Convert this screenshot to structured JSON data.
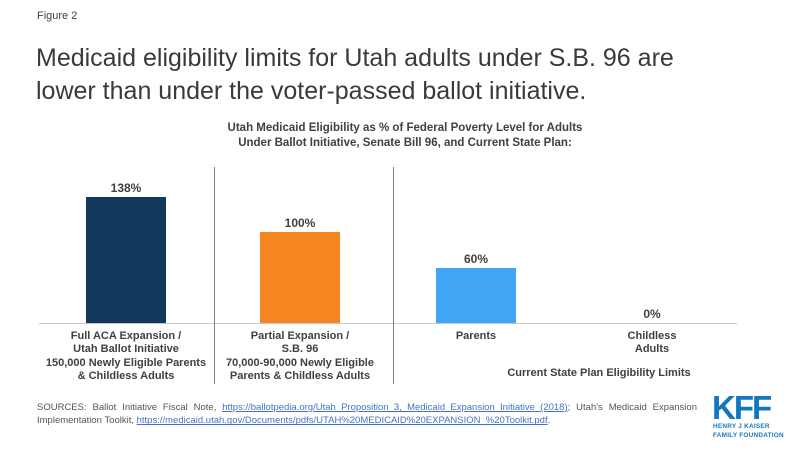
{
  "figure_label": "Figure 2",
  "title": "Medicaid eligibility limits for Utah adults under S.B. 96 are lower than under the voter-passed ballot initiative.",
  "chart_data": {
    "type": "bar",
    "title": "Utah Medicaid Eligibility as % of Federal Poverty Level for Adults Under Ballot Initiative, Senate Bill 96, and Current State Plan:",
    "title_lines": [
      "Utah Medicaid Eligibility as % of Federal Poverty Level for Adults",
      "Under Ballot Initiative, Senate Bill 96, and Current State Plan:"
    ],
    "unit": "% of Federal Poverty Level",
    "categories": [
      "Full ACA Expansion / Utah Ballot Initiative 150,000 Newly Eligible Parents & Childless Adults",
      "Partial Expansion / S.B. 96 70,000-90,000 Newly Eligible Parents & Childless Adults",
      "Parents",
      "Childless Adults"
    ],
    "values": [
      138,
      100,
      60,
      0
    ],
    "ylim": [
      0,
      150
    ],
    "grid": false,
    "legend": "none",
    "y_axis_visible": false,
    "bars": [
      {
        "value": 138,
        "value_label": "138%",
        "color": "#12395B",
        "label_lines": [
          "Full ACA Expansion /",
          "Utah Ballot Initiative",
          "150,000 Newly Eligible Parents",
          "& Childless Adults"
        ]
      },
      {
        "value": 100,
        "value_label": "100%",
        "color": "#F6861F",
        "label_lines": [
          "Partial Expansion /",
          "S.B. 96",
          "70,000-90,000 Newly Eligible",
          "Parents & Childless Adults"
        ]
      },
      {
        "value": 60,
        "value_label": "60%",
        "color": "#41A4F5",
        "label_lines": [
          "Parents"
        ]
      },
      {
        "value": 0,
        "value_label": "0%",
        "color": "none",
        "label_lines": [
          "Childless",
          "Adults"
        ]
      }
    ],
    "group_label": "Current State Plan Eligibility Limits"
  },
  "sources": {
    "prefix": "SOURCES: Ballot Initiative Fiscal Note, ",
    "link1": "https://ballotpedia.org/Utah_Proposition_3,_Medicaid_Expansion_Initiative_(2018)",
    "middle": "; Utah's Medicaid Expansion Implementation Toolkit, ",
    "link2": "https://medicaid.utah.gov/Documents/pdfs/UTAH%20MEDICAID%20EXPANSION_%20Toolkit.pdf",
    "suffix": "."
  },
  "logo": {
    "text": "KFF",
    "line1": "HENRY J KAISER",
    "line2": "FAMILY FOUNDATION"
  },
  "colors": {
    "bar_navy": "#12395B",
    "bar_orange": "#F6861F",
    "bar_blue": "#41A4F5",
    "axis_line": "#C9C9C9",
    "separator": "#808080",
    "text": "#404040",
    "link": "#4472C4",
    "logo_blue": "#1377BD"
  }
}
